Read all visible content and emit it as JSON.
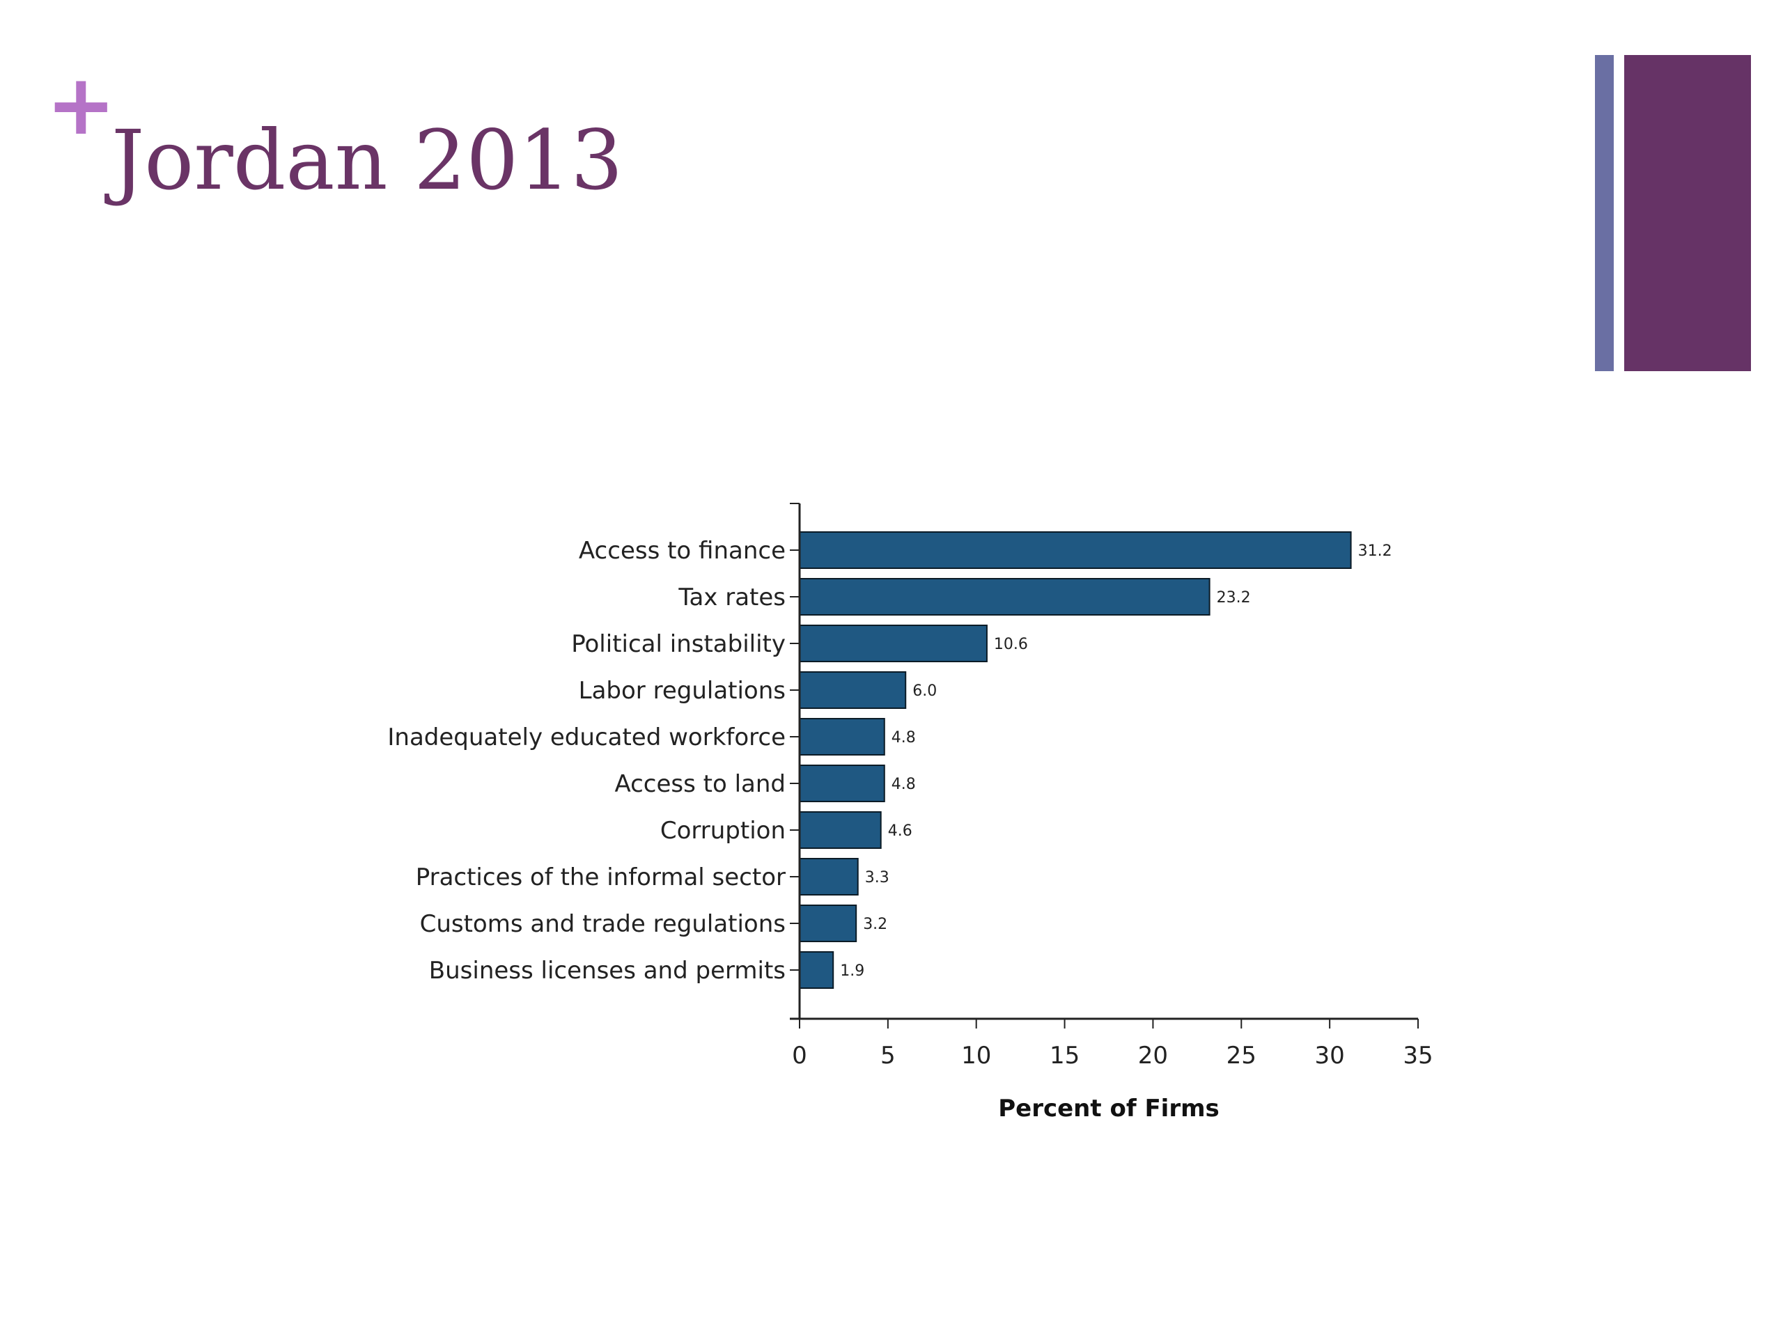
{
  "slide": {
    "plus_symbol": "+",
    "title": "Jordan 2013",
    "colors": {
      "title": "#6a3466",
      "plus": "#b573c7",
      "accent_thin": "#6a6fa3",
      "accent_wide": "#663366"
    }
  },
  "chart_data": {
    "type": "bar",
    "orientation": "horizontal",
    "categories": [
      "Access to finance",
      "Tax rates",
      "Political instability",
      "Labor regulations",
      "Inadequately educated workforce",
      "Access to land",
      "Corruption",
      "Practices of the informal sector",
      "Customs and trade regulations",
      "Business licenses and permits"
    ],
    "values": [
      31.2,
      23.2,
      10.6,
      6.0,
      4.8,
      4.8,
      4.6,
      3.3,
      3.2,
      1.9
    ],
    "value_labels": [
      "31.2",
      "23.2",
      "10.6",
      "6.0",
      "4.8",
      "4.8",
      "4.6",
      "3.3",
      "3.2",
      "1.9"
    ],
    "xlabel": "Percent of Firms",
    "ylabel": "",
    "xlim": [
      0,
      35
    ],
    "xticks": [
      "0",
      "5",
      "10",
      "15",
      "20",
      "25",
      "30",
      "35"
    ],
    "grid": false,
    "bar_color": "#1f5882"
  }
}
